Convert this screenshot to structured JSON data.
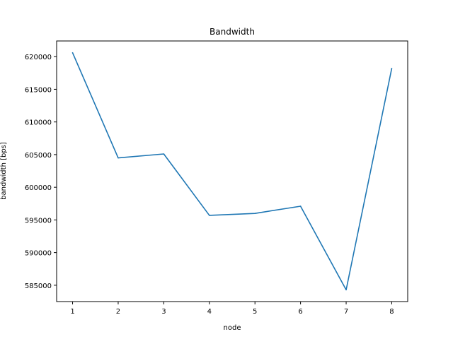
{
  "chart_data": {
    "type": "line",
    "title": "Bandwidth",
    "xlabel": "node",
    "ylabel": "bandwidth [bps]",
    "x": [
      1,
      2,
      3,
      4,
      5,
      6,
      7,
      8
    ],
    "series": [
      {
        "values": [
          620600,
          604500,
          605100,
          595700,
          596000,
          597100,
          584300,
          618200
        ],
        "color": "#1f77b4"
      }
    ],
    "xlim": [
      0.65,
      8.35
    ],
    "ylim": [
      582500,
      622400
    ],
    "xticks": [
      1,
      2,
      3,
      4,
      5,
      6,
      7,
      8
    ],
    "xtick_labels": [
      "1",
      "2",
      "3",
      "4",
      "5",
      "6",
      "7",
      "8"
    ],
    "yticks": [
      585000,
      590000,
      595000,
      600000,
      605000,
      610000,
      615000,
      620000
    ],
    "ytick_labels": [
      "585000",
      "590000",
      "595000",
      "600000",
      "605000",
      "610000",
      "615000",
      "620000"
    ],
    "grid": false,
    "legend": false
  }
}
